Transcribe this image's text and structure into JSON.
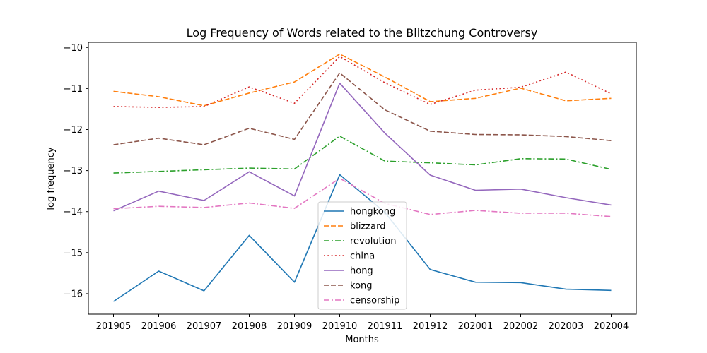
{
  "chart_data": {
    "type": "line",
    "title": "Log Frequency of Words related to the Blitzchung Controversy",
    "xlabel": "Months",
    "ylabel": "log frequency",
    "categories": [
      "201905",
      "201906",
      "201907",
      "201908",
      "201909",
      "201910",
      "201911",
      "201912",
      "202001",
      "202002",
      "202003",
      "202004"
    ],
    "ylim": [
      -16.5,
      -9.875
    ],
    "yticks": [
      -10,
      -11,
      -12,
      -13,
      -14,
      -15,
      -16
    ],
    "grid": false,
    "legend_position": "bottom-center",
    "series": [
      {
        "name": "hongkong",
        "color": "#1f77b4",
        "dash": "solid",
        "values": [
          -16.19,
          -15.45,
          -15.93,
          -14.58,
          -15.72,
          -13.1,
          -14.02,
          -15.41,
          -15.72,
          -15.73,
          -15.89,
          -15.92
        ]
      },
      {
        "name": "blizzard",
        "color": "#ff7f0e",
        "dash": "dashed",
        "values": [
          -11.07,
          -11.2,
          -11.42,
          -11.11,
          -10.84,
          -10.16,
          -10.72,
          -11.32,
          -11.24,
          -10.99,
          -11.3,
          -11.24
        ]
      },
      {
        "name": "revolution",
        "color": "#2ca02c",
        "dash": "dashdot",
        "values": [
          -13.06,
          -13.02,
          -12.98,
          -12.94,
          -12.96,
          -12.16,
          -12.77,
          -12.81,
          -12.86,
          -12.71,
          -12.72,
          -12.97
        ]
      },
      {
        "name": "china",
        "color": "#d62728",
        "dash": "dotted",
        "values": [
          -11.44,
          -11.46,
          -11.44,
          -10.96,
          -11.36,
          -10.22,
          -10.86,
          -11.39,
          -11.04,
          -10.97,
          -10.6,
          -11.13
        ]
      },
      {
        "name": "hong",
        "color": "#9467bd",
        "dash": "solid",
        "values": [
          -13.98,
          -13.5,
          -13.73,
          -13.03,
          -13.62,
          -10.87,
          -12.09,
          -13.11,
          -13.48,
          -13.45,
          -13.66,
          -13.84
        ]
      },
      {
        "name": "kong",
        "color": "#8c564b",
        "dash": "dashed",
        "values": [
          -12.37,
          -12.21,
          -12.37,
          -11.97,
          -12.24,
          -10.62,
          -11.52,
          -12.04,
          -12.12,
          -12.13,
          -12.17,
          -12.27
        ]
      },
      {
        "name": "censorship",
        "color": "#e377c2",
        "dash": "dashdot",
        "values": [
          -13.93,
          -13.87,
          -13.9,
          -13.79,
          -13.92,
          -13.19,
          -13.8,
          -14.07,
          -13.97,
          -14.04,
          -14.04,
          -14.12
        ]
      }
    ]
  }
}
